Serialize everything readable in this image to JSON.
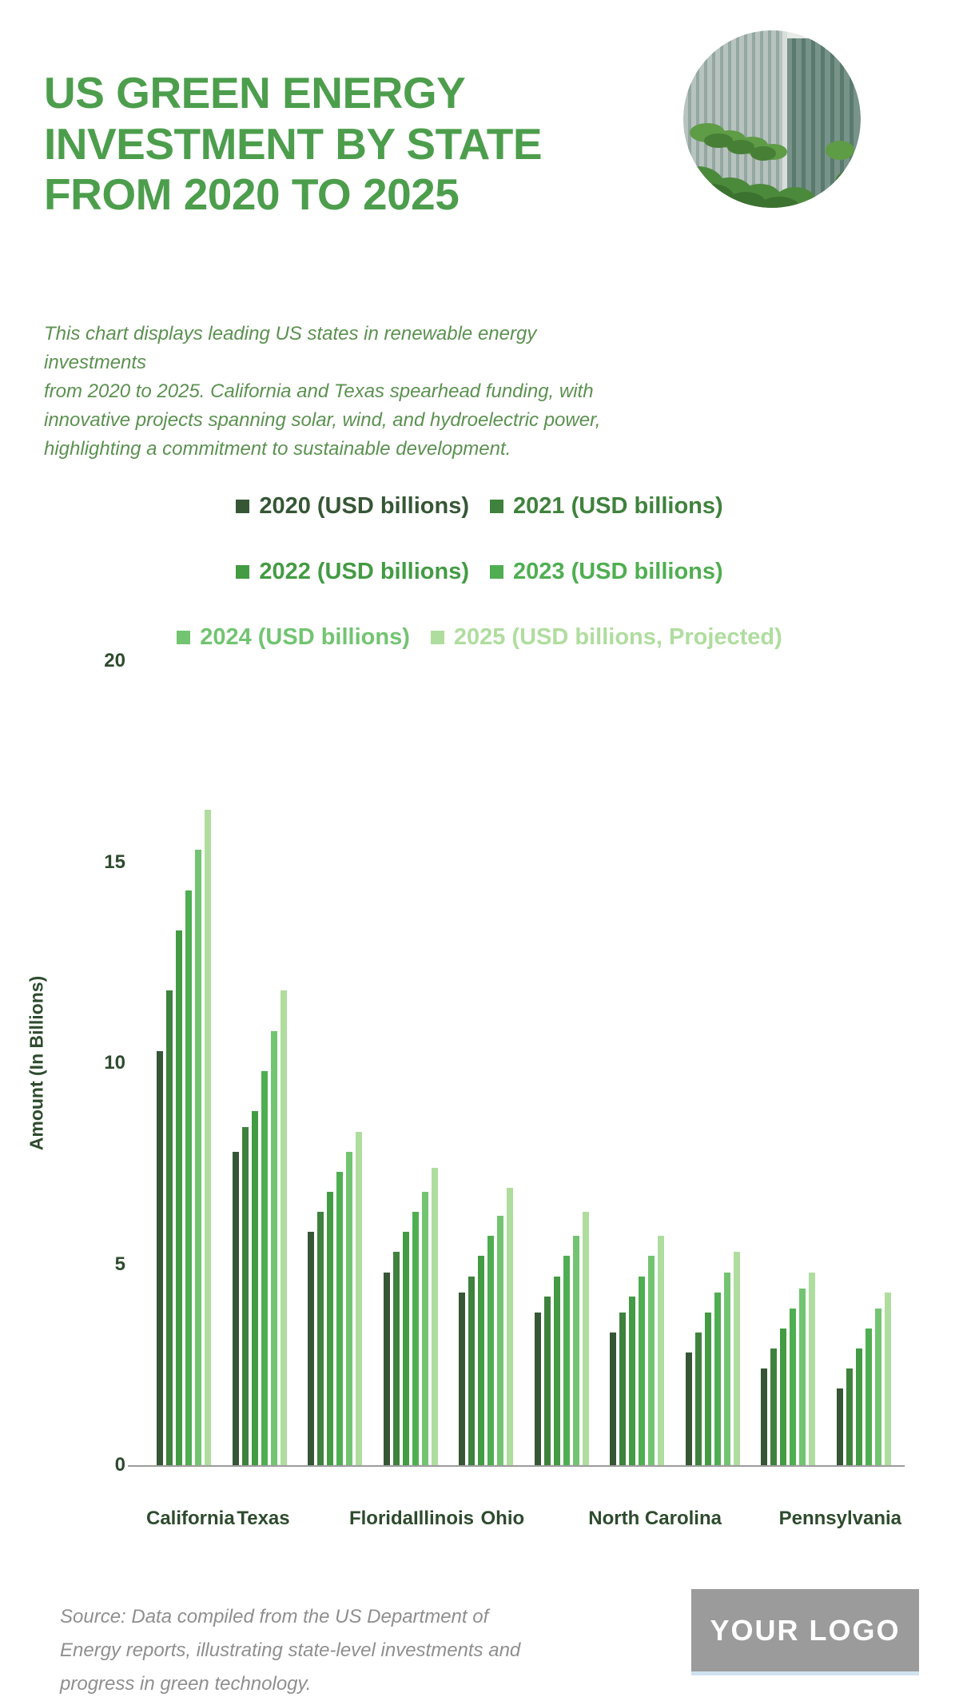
{
  "header": {
    "title": "US GREEN ENERGY\nINVESTMENT BY STATE\nFROM 2020 TO 2025",
    "hero_image": "green-building-photo"
  },
  "description": "This chart displays leading US states in renewable energy investments\nfrom 2020 to 2025. California and Texas spearhead funding, with\ninnovative projects spanning solar, wind, and hydroelectric power,\nhighlighting a commitment to sustainable development.",
  "footer": {
    "source_note": "Source: Data compiled from the US Department of\nEnergy reports, illustrating state-level investments and\nprogress in green technology.",
    "logo_text": "YOUR LOGO"
  },
  "colors": {
    "title_green": "#4c9e4c",
    "description_green": "#5b9150",
    "axis_text": "#2e4b2e",
    "axis_line": "#9c9c9c",
    "source_gray": "#8f8f8f",
    "logo_bg": "#9b9b9b",
    "logo_underline": "#cfe2f0",
    "background": "#ffffff"
  },
  "chart_data": {
    "type": "bar",
    "title": "",
    "xlabel": "",
    "ylabel": "Amount (In Billions)",
    "ylim": [
      0,
      20
    ],
    "yticks": [
      0,
      5,
      10,
      15,
      20
    ],
    "grid": false,
    "legend_position": "top",
    "legend_rows": 3,
    "categories": [
      "California",
      "Texas",
      "",
      "Florida",
      "Illinois",
      "Ohio",
      "",
      "North Carolina",
      "",
      "Pennsylvania"
    ],
    "series": [
      {
        "name": "2020 (USD billions)",
        "color": "#365636",
        "values": [
          10.3,
          7.8,
          5.8,
          4.8,
          4.3,
          3.8,
          3.3,
          2.8,
          2.4,
          1.9
        ]
      },
      {
        "name": "2021 (USD billions)",
        "color": "#3f823d",
        "values": [
          11.8,
          8.4,
          6.3,
          5.3,
          4.7,
          4.2,
          3.8,
          3.3,
          2.9,
          2.4
        ]
      },
      {
        "name": "2022 (USD billions)",
        "color": "#439b43",
        "values": [
          13.3,
          8.8,
          6.8,
          5.8,
          5.2,
          4.7,
          4.2,
          3.8,
          3.4,
          2.9
        ]
      },
      {
        "name": "2023 (USD billions)",
        "color": "#4fae51",
        "values": [
          14.3,
          9.8,
          7.3,
          6.3,
          5.7,
          5.2,
          4.7,
          4.3,
          3.9,
          3.4
        ]
      },
      {
        "name": "2024 (USD billions)",
        "color": "#72c471",
        "values": [
          15.3,
          10.8,
          7.8,
          6.8,
          6.2,
          5.7,
          5.2,
          4.8,
          4.4,
          3.9
        ]
      },
      {
        "name": "2025 (USD billions, Projected)",
        "color": "#afdd9e",
        "values": [
          16.3,
          11.8,
          8.3,
          7.4,
          6.9,
          6.3,
          5.7,
          5.3,
          4.8,
          4.3
        ]
      }
    ]
  }
}
